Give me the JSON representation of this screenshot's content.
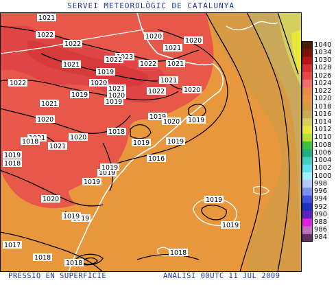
{
  "header": {
    "title": "SERVEI METEOROLÒGIC DE CATALUNYA"
  },
  "footer": {
    "left": "PRESSIÓ EN SUPERFÍCIE",
    "right": "ANÀLISI 00UTC 11 JUL 2009"
  },
  "legend": {
    "items": [
      {
        "label": "1040",
        "color": "#4a1f00"
      },
      {
        "label": "1034",
        "color": "#7a1208"
      },
      {
        "label": "1030",
        "color": "#b51414"
      },
      {
        "label": "1028",
        "color": "#d83030"
      },
      {
        "label": "1026",
        "color": "#e84848"
      },
      {
        "label": "1024",
        "color": "#f07070"
      },
      {
        "label": "1022",
        "color": "#ec8a4a"
      },
      {
        "label": "1020",
        "color": "#e8973c"
      },
      {
        "label": "1018",
        "color": "#d69a44"
      },
      {
        "label": "1016",
        "color": "#c9a85a"
      },
      {
        "label": "1014",
        "color": "#d4d060"
      },
      {
        "label": "1012",
        "color": "#e8e838"
      },
      {
        "label": "1010",
        "color": "#b8e030"
      },
      {
        "label": "1008",
        "color": "#40c040"
      },
      {
        "label": "1006",
        "color": "#20b080"
      },
      {
        "label": "1004",
        "color": "#40d0c0"
      },
      {
        "label": "1002",
        "color": "#60e0f0"
      },
      {
        "label": "1000",
        "color": "#a0f0ff"
      },
      {
        "label": "998",
        "color": "#b8c8f8"
      },
      {
        "label": "996",
        "color": "#8090f0"
      },
      {
        "label": "994",
        "color": "#4050e0"
      },
      {
        "label": "992",
        "color": "#2030c0"
      },
      {
        "label": "990",
        "color": "#6020c0"
      },
      {
        "label": "988",
        "color": "#e020e0"
      },
      {
        "label": "986",
        "color": "#c070c0"
      },
      {
        "label": "984",
        "color": "#603060"
      }
    ]
  },
  "isobar_labels": [
    "1021",
    "1022",
    "1022",
    "1020",
    "1020",
    "1021",
    "1023",
    "1022",
    "1021",
    "1019",
    "1022",
    "1022",
    "1021",
    "1020",
    "1020",
    "1021",
    "1019",
    "1021",
    "1020",
    "1021",
    "1019",
    "1019",
    "1022",
    "1019",
    "1020",
    "1019",
    "1018",
    "1019",
    "1019",
    "1016",
    "1020",
    "1021",
    "1021",
    "1019",
    "1019",
    "1019",
    "1018",
    "1020",
    "1020",
    "1019",
    "1019",
    "1019",
    "1017",
    "1018",
    "1018",
    "1018",
    "1018",
    "1019"
  ]
}
